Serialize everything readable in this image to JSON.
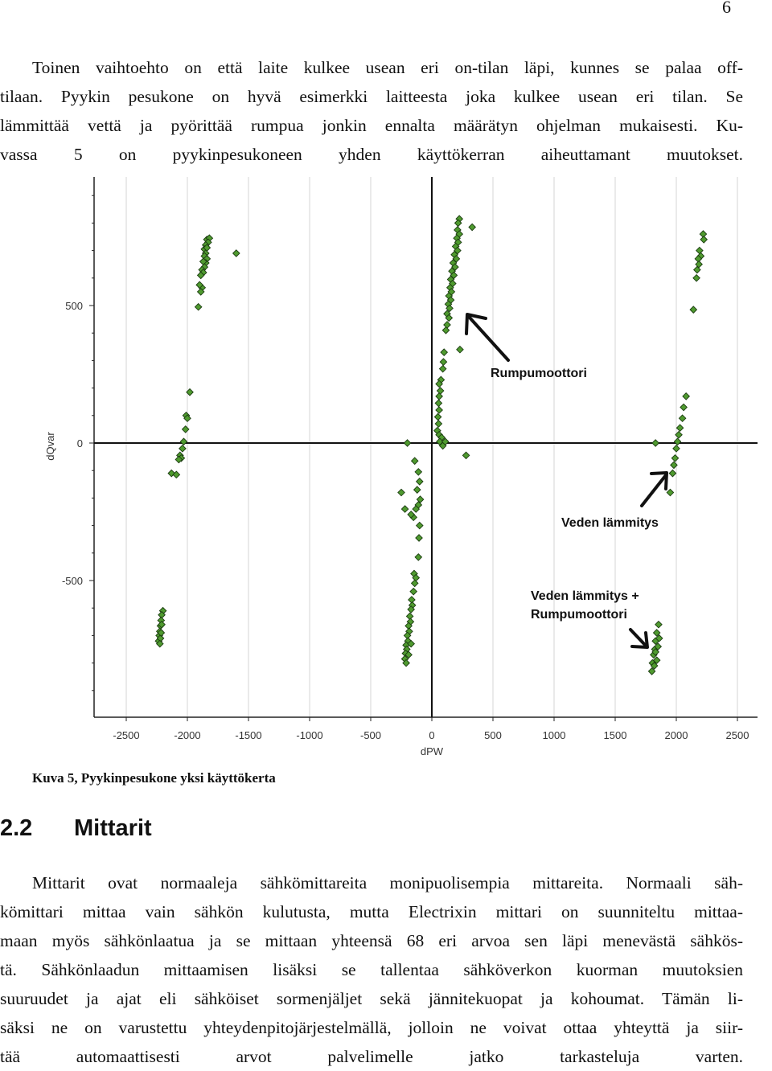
{
  "page_number": "6",
  "paragraph1": {
    "lines": [
      "Toinen vaihtoehto on että laite kulkee usean eri on-tilan läpi, kunnes se palaa off-",
      "tilaan. Pyykin pesukone on hyvä esimerkki laitteesta joka kulkee usean eri tilan. Se",
      "lämmittää vettä ja pyörittää rumpua jonkin ennalta määrätyn ohjelman mukaisesti. Ku-",
      "vassa 5 on pyykinpesukoneen yhden käyttökerran aiheuttamant muutokset."
    ]
  },
  "figure": {
    "caption": "Kuva 5, Pyykinpesukone yksi käyttökerta",
    "annotations": {
      "rumpumoottori": "Rumpumoottori",
      "veden_lammitys": "Veden lämmitys",
      "combined_line1": "Veden lämmitys +",
      "combined_line2": "Rumpumoottori"
    }
  },
  "chart_data": {
    "type": "scatter",
    "xlabel": "dPW",
    "ylabel": "dQvar",
    "xlim": [
      -2600,
      2600
    ],
    "ylim": [
      -1000,
      970
    ],
    "xticks": [
      -2500,
      -2000,
      -1500,
      -1000,
      -500,
      0,
      500,
      1000,
      1500,
      2000,
      2500
    ],
    "yticks": [
      500,
      0,
      -500
    ],
    "grid": true,
    "marker_color": "#4f9a2f",
    "marker_edge": "#1a3a10",
    "points": [
      [
        -1840,
        740
      ],
      [
        -1820,
        745
      ],
      [
        -1830,
        730
      ],
      [
        -1850,
        720
      ],
      [
        -1860,
        705
      ],
      [
        -1840,
        710
      ],
      [
        -1850,
        690
      ],
      [
        -1860,
        680
      ],
      [
        -1840,
        670
      ],
      [
        -1850,
        655
      ],
      [
        -1870,
        660
      ],
      [
        -1860,
        640
      ],
      [
        -1880,
        630
      ],
      [
        -1870,
        620
      ],
      [
        -1890,
        610
      ],
      [
        -1880,
        565
      ],
      [
        -1900,
        575
      ],
      [
        -1890,
        550
      ],
      [
        -1910,
        495
      ],
      [
        -1600,
        690
      ],
      [
        -1980,
        185
      ],
      [
        -2010,
        100
      ],
      [
        -2000,
        90
      ],
      [
        -2015,
        50
      ],
      [
        -2030,
        5
      ],
      [
        -2040,
        -20
      ],
      [
        -2060,
        -45
      ],
      [
        -2050,
        -55
      ],
      [
        -2070,
        -60
      ],
      [
        -2130,
        -110
      ],
      [
        -2090,
        -115
      ],
      [
        -2200,
        -610
      ],
      [
        -2210,
        -625
      ],
      [
        -2215,
        -645
      ],
      [
        -2220,
        -665
      ],
      [
        -2225,
        -685
      ],
      [
        -2230,
        -700
      ],
      [
        -2235,
        -720
      ],
      [
        -2220,
        -710
      ],
      [
        -2215,
        -690
      ],
      [
        -2210,
        -660
      ],
      [
        -2225,
        -730
      ],
      [
        225,
        815
      ],
      [
        215,
        800
      ],
      [
        330,
        785
      ],
      [
        210,
        775
      ],
      [
        225,
        760
      ],
      [
        205,
        745
      ],
      [
        215,
        730
      ],
      [
        195,
        715
      ],
      [
        210,
        700
      ],
      [
        185,
        685
      ],
      [
        200,
        670
      ],
      [
        175,
        655
      ],
      [
        190,
        640
      ],
      [
        165,
        625
      ],
      [
        180,
        610
      ],
      [
        155,
        595
      ],
      [
        170,
        580
      ],
      [
        150,
        565
      ],
      [
        160,
        550
      ],
      [
        140,
        535
      ],
      [
        155,
        520
      ],
      [
        135,
        505
      ],
      [
        145,
        490
      ],
      [
        125,
        470
      ],
      [
        140,
        455
      ],
      [
        125,
        430
      ],
      [
        115,
        410
      ],
      [
        230,
        340
      ],
      [
        100,
        330
      ],
      [
        95,
        295
      ],
      [
        90,
        270
      ],
      [
        75,
        230
      ],
      [
        60,
        215
      ],
      [
        70,
        190
      ],
      [
        60,
        170
      ],
      [
        55,
        145
      ],
      [
        60,
        120
      ],
      [
        50,
        95
      ],
      [
        55,
        70
      ],
      [
        45,
        45
      ],
      [
        60,
        30
      ],
      [
        80,
        20
      ],
      [
        65,
        5
      ],
      [
        90,
        -10
      ],
      [
        110,
        5
      ],
      [
        280,
        -45
      ],
      [
        -200,
        0
      ],
      [
        -250,
        -180
      ],
      [
        -140,
        -65
      ],
      [
        -110,
        -105
      ],
      [
        -100,
        -140
      ],
      [
        -120,
        -170
      ],
      [
        -95,
        -205
      ],
      [
        -110,
        -225
      ],
      [
        -130,
        -240
      ],
      [
        -150,
        -270
      ],
      [
        -170,
        -260
      ],
      [
        -220,
        -240
      ],
      [
        -100,
        -300
      ],
      [
        -105,
        -345
      ],
      [
        -110,
        -415
      ],
      [
        -145,
        -475
      ],
      [
        -130,
        -490
      ],
      [
        -140,
        -510
      ],
      [
        -150,
        -540
      ],
      [
        -165,
        -570
      ],
      [
        -160,
        -590
      ],
      [
        -170,
        -605
      ],
      [
        -180,
        -630
      ],
      [
        -175,
        -650
      ],
      [
        -190,
        -665
      ],
      [
        -185,
        -685
      ],
      [
        -200,
        -700
      ],
      [
        -195,
        -720
      ],
      [
        -210,
        -735
      ],
      [
        -205,
        -750
      ],
      [
        -215,
        -765
      ],
      [
        -220,
        -785
      ],
      [
        -210,
        -800
      ],
      [
        -190,
        -770
      ],
      [
        -170,
        -730
      ],
      [
        2220,
        760
      ],
      [
        2225,
        740
      ],
      [
        2190,
        700
      ],
      [
        2200,
        680
      ],
      [
        2180,
        670
      ],
      [
        2185,
        650
      ],
      [
        2170,
        630
      ],
      [
        2165,
        600
      ],
      [
        2140,
        485
      ],
      [
        2080,
        170
      ],
      [
        2060,
        130
      ],
      [
        2050,
        90
      ],
      [
        2030,
        55
      ],
      [
        2020,
        30
      ],
      [
        2010,
        5
      ],
      [
        2000,
        -20
      ],
      [
        1990,
        -55
      ],
      [
        1980,
        -80
      ],
      [
        1970,
        -110
      ],
      [
        1950,
        -180
      ],
      [
        1830,
        0
      ],
      [
        1855,
        -660
      ],
      [
        1840,
        -690
      ],
      [
        1830,
        -720
      ],
      [
        1825,
        -750
      ],
      [
        1815,
        -770
      ],
      [
        1805,
        -800
      ],
      [
        1800,
        -830
      ],
      [
        1830,
        -760
      ],
      [
        1850,
        -740
      ],
      [
        1860,
        -710
      ],
      [
        1840,
        -790
      ],
      [
        1820,
        -810
      ]
    ]
  }
}
